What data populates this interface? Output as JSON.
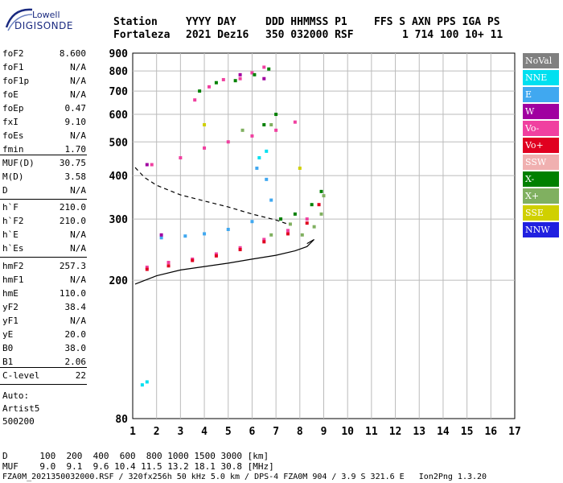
{
  "logo": {
    "line1": "Lowell",
    "line2": "DIGISONDE"
  },
  "header": {
    "labels": [
      "Station",
      "YYYY DAY",
      "DDD HHMMSS P1",
      "FFS S AXN PPS IGA PS"
    ],
    "values": [
      "Fortaleza",
      "2021 Dez16",
      "350 032000 RSF",
      "1 714 100 10+ 11"
    ]
  },
  "params": [
    {
      "k": "foF2",
      "v": "8.600"
    },
    {
      "k": "foF1",
      "v": "N/A"
    },
    {
      "k": "foF1p",
      "v": "N/A"
    },
    {
      "k": "foE",
      "v": "N/A"
    },
    {
      "k": "foEp",
      "v": "0.47"
    },
    {
      "k": "fxI",
      "v": "9.10"
    },
    {
      "k": "foEs",
      "v": "N/A"
    },
    {
      "k": "fmin",
      "v": "1.70"
    },
    {
      "k": "MUF(D)",
      "v": "30.75"
    },
    {
      "k": "M(D)",
      "v": "3.58"
    },
    {
      "k": "D",
      "v": "N/A"
    },
    {
      "k": "h`F",
      "v": "210.0"
    },
    {
      "k": "h`F2",
      "v": "210.0"
    },
    {
      "k": "h`E",
      "v": "N/A"
    },
    {
      "k": "h`Es",
      "v": "N/A"
    },
    {
      "k": "hmF2",
      "v": "257.3"
    },
    {
      "k": "hmF1",
      "v": "N/A"
    },
    {
      "k": "hmE",
      "v": "110.0"
    },
    {
      "k": "yF2",
      "v": "38.4"
    },
    {
      "k": "yF1",
      "v": "N/A"
    },
    {
      "k": "yE",
      "v": "20.0"
    },
    {
      "k": "B0",
      "v": "38.0"
    },
    {
      "k": "B1",
      "v": "2.06"
    },
    {
      "k": "C-level",
      "v": "22"
    }
  ],
  "auto": {
    "line1": "Auto:",
    "line2": "Artist5",
    "line3": "500200"
  },
  "bottom": {
    "d_row": "D      100  200  400  600  800 1000 1500 3000 [km]",
    "muf_row": "MUF    9.0  9.1  9.6 10.4 11.5 13.2 18.1 30.8 [MHz]",
    "footer": "FZA0M_2021350032000.RSF / 320fx256h 50 kHz 5.0 km / DPS-4 FZA0M 904 / 3.9 S 321.6 E   Ion2Png 1.3.20"
  },
  "legend": [
    {
      "label": "NoVal",
      "color": "#808080"
    },
    {
      "label": "NNE",
      "color": "#00e0f0"
    },
    {
      "label": "E",
      "color": "#40a8f0"
    },
    {
      "label": "W",
      "color": "#a000a0"
    },
    {
      "label": "Vo-",
      "color": "#f040a0"
    },
    {
      "label": "Vo+",
      "color": "#e00020"
    },
    {
      "label": "SSW",
      "color": "#f0b0b0"
    },
    {
      "label": "X-",
      "color": "#008000"
    },
    {
      "label": "X+",
      "color": "#80b060"
    },
    {
      "label": "SSE",
      "color": "#d0d000"
    },
    {
      "label": "NNW",
      "color": "#2020e0"
    }
  ],
  "chart_data": {
    "type": "scatter",
    "xlabel": "",
    "ylabel": "",
    "xlim": [
      1,
      17
    ],
    "ylim": [
      80,
      900
    ],
    "y_scale": "log",
    "xticks": [
      1,
      2,
      3,
      4,
      5,
      6,
      7,
      8,
      9,
      10,
      11,
      12,
      13,
      14,
      15,
      16,
      17
    ],
    "yticks": [
      80,
      200,
      300,
      400,
      500,
      600,
      700,
      800,
      900
    ],
    "grid": true,
    "legend_position": "right",
    "series": [
      {
        "name": "E",
        "points": [
          [
            3.2,
            268
          ],
          [
            4,
            272
          ],
          [
            5,
            280
          ],
          [
            6,
            295
          ],
          [
            6.8,
            340
          ],
          [
            6.2,
            420
          ],
          [
            2.2,
            265
          ],
          [
            6.6,
            390
          ]
        ]
      },
      {
        "name": "Vo-",
        "points": [
          [
            1.6,
            218
          ],
          [
            2.5,
            225
          ],
          [
            3.5,
            230
          ],
          [
            4.5,
            238
          ],
          [
            5.5,
            248
          ],
          [
            6.5,
            262
          ],
          [
            7.5,
            278
          ],
          [
            8.3,
            300
          ],
          [
            3.6,
            660
          ],
          [
            4.2,
            720
          ],
          [
            4.8,
            755
          ],
          [
            5.5,
            760
          ],
          [
            6,
            790
          ],
          [
            6.5,
            820
          ],
          [
            1.8,
            430
          ],
          [
            3,
            450
          ],
          [
            4,
            480
          ],
          [
            5,
            500
          ],
          [
            6,
            520
          ],
          [
            7,
            540
          ],
          [
            7.8,
            570
          ]
        ]
      },
      {
        "name": "Vo+",
        "points": [
          [
            1.6,
            215
          ],
          [
            2.5,
            220
          ],
          [
            3.5,
            228
          ],
          [
            4.5,
            235
          ],
          [
            5.5,
            245
          ],
          [
            6.5,
            258
          ],
          [
            7.5,
            272
          ],
          [
            8.3,
            292
          ],
          [
            8.8,
            330
          ]
        ]
      },
      {
        "name": "X-",
        "points": [
          [
            3.8,
            700
          ],
          [
            4.5,
            740
          ],
          [
            5.3,
            750
          ],
          [
            6.1,
            780
          ],
          [
            6.7,
            810
          ],
          [
            7.2,
            300
          ],
          [
            7.8,
            310
          ],
          [
            8.5,
            330
          ],
          [
            8.9,
            360
          ],
          [
            6.5,
            560
          ],
          [
            7,
            600
          ]
        ]
      },
      {
        "name": "X+",
        "points": [
          [
            8.1,
            270
          ],
          [
            8.6,
            285
          ],
          [
            8.9,
            310
          ],
          [
            9,
            350
          ],
          [
            7.6,
            290
          ],
          [
            6.8,
            270
          ],
          [
            5.6,
            540
          ],
          [
            6.8,
            560
          ]
        ]
      },
      {
        "name": "NNE",
        "points": [
          [
            1.4,
            100
          ],
          [
            1.6,
            102
          ],
          [
            6.3,
            450
          ],
          [
            6.6,
            470
          ]
        ]
      },
      {
        "name": "W",
        "points": [
          [
            2.2,
            270
          ],
          [
            5.5,
            780
          ],
          [
            6.5,
            760
          ],
          [
            1.6,
            430
          ]
        ]
      },
      {
        "name": "SSE",
        "points": [
          [
            8,
            420
          ],
          [
            4,
            560
          ]
        ]
      }
    ],
    "lines": [
      {
        "name": "virtual-height profile",
        "style": "solid",
        "points": [
          [
            1.1,
            195
          ],
          [
            2,
            206
          ],
          [
            3,
            214
          ],
          [
            4,
            219
          ],
          [
            5,
            224
          ],
          [
            6,
            230
          ],
          [
            7,
            236
          ],
          [
            7.8,
            243
          ],
          [
            8.3,
            250
          ],
          [
            8.6,
            262
          ],
          [
            8.3,
            255
          ]
        ]
      },
      {
        "name": "model trace",
        "style": "dashed",
        "points": [
          [
            1.1,
            422
          ],
          [
            1.5,
            395
          ],
          [
            2,
            375
          ],
          [
            3,
            352
          ],
          [
            4,
            338
          ],
          [
            5,
            325
          ],
          [
            6,
            310
          ],
          [
            7,
            298
          ],
          [
            7.5,
            290
          ]
        ]
      }
    ]
  }
}
